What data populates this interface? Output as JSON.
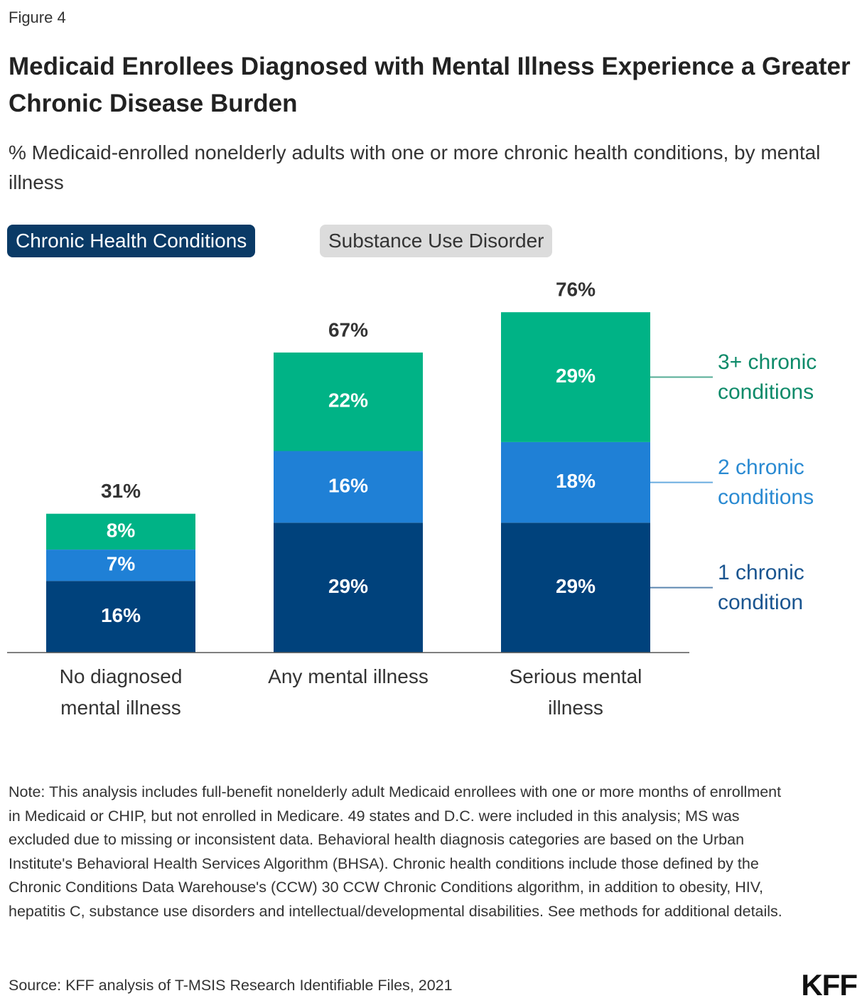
{
  "figure_label": "Figure 4",
  "title": "Medicaid Enrollees Diagnosed with Mental Illness Experience a Greater Chronic Disease Burden",
  "subtitle": "% Medicaid-enrolled nonelderly adults with one or more chronic health conditions, by mental illness",
  "tabs": [
    "Chronic Health Conditions",
    "Substance Use Disorder"
  ],
  "active_tab": 0,
  "chart_data": {
    "type": "bar",
    "stacked": true,
    "categories": [
      "No diagnosed mental illness",
      "Any mental illness",
      "Serious mental illness"
    ],
    "series": [
      {
        "name": "1 chronic condition",
        "color": "#00427c",
        "label_color": "#1a5590",
        "values": [
          16,
          29,
          29
        ],
        "value_labels": [
          "16%",
          "29%",
          "29%"
        ]
      },
      {
        "name": "2 chronic conditions",
        "color": "#1f80d6",
        "label_color": "#2a8ad2",
        "values": [
          7,
          16,
          18
        ],
        "value_labels": [
          "7%",
          "16%",
          "18%"
        ]
      },
      {
        "name": "3+ chronic conditions",
        "color": "#00b386",
        "label_color": "#0c8a69",
        "values": [
          8,
          22,
          29
        ],
        "value_labels": [
          "8%",
          "22%",
          "29%"
        ]
      }
    ],
    "totals": [
      31,
      67,
      76
    ],
    "total_labels": [
      "31%",
      "67%",
      "76%"
    ]
  },
  "note": "Note: This analysis includes full-benefit nonelderly adult Medicaid enrollees with one or more months of enrollment in Medicaid or CHIP, but not enrolled in Medicare. 49 states and D.C. were included in this analysis; MS was excluded due to missing or inconsistent data. Behavioral health diagnosis categories are based on the Urban Institute's Behavioral Health Services Algorithm (BHSA). Chronic health conditions include those defined by the Chronic Conditions Data Warehouse's (CCW) 30 CCW Chronic Conditions algorithm, in addition to obesity, HIV, hepatitis C, substance use disorders and intellectual/developmental disabilities. See methods for additional details.",
  "source": "Source: KFF analysis of T-MSIS Research Identifiable Files, 2021",
  "logo": "KFF"
}
